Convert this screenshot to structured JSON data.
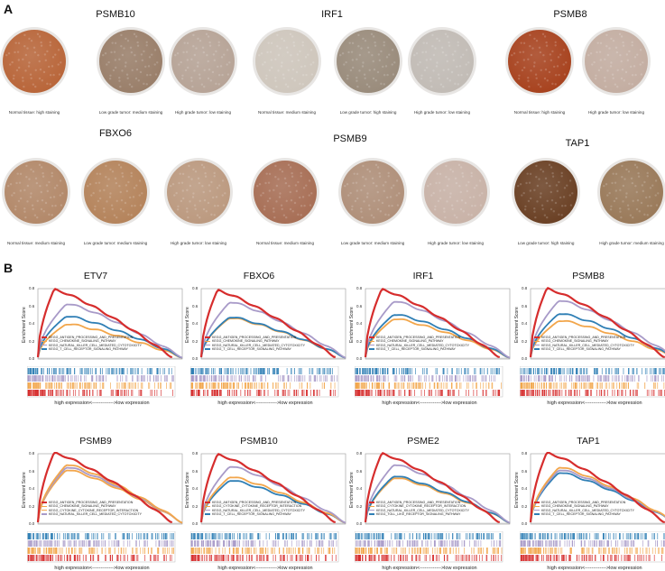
{
  "panel_a": {
    "letter": "A",
    "groups": [
      {
        "gene": "PSMB10",
        "captions": [
          "Normal tissue: high staining",
          "Low grade tumor: medium staining",
          "High grade tumor: low staining"
        ],
        "tones": [
          "#b9663a",
          "#9a7f6a",
          "#b7a497"
        ]
      },
      {
        "gene": "IRF1",
        "captions": [
          "Normal tissue: medium staining",
          "Low grade tumor: high staining",
          "High grade tumor: low staining"
        ],
        "tones": [
          "#cfc7bd",
          "#9a8c7c",
          "#c2bcb6"
        ]
      },
      {
        "gene": "PSMB8",
        "captions": [
          "Normal tissue: high staining",
          "High grade tumor: low staining"
        ],
        "tones": [
          "#a8431f",
          "#c4aea2"
        ]
      },
      {
        "gene": "FBXO6",
        "captions": [
          "Normal tissue: medium staining",
          "Low grade tumor: medium staining",
          "High grade tumor: low staining"
        ],
        "tones": [
          "#b3896a",
          "#b5845c",
          "#bc9a80"
        ]
      },
      {
        "gene": "PSMB9",
        "captions": [
          "Normal tissue: medium staining",
          "Low grade tumor: medium staining",
          "High grade tumor: low staining"
        ],
        "tones": [
          "#a86f56",
          "#b0907a",
          "#c9b3a8"
        ]
      },
      {
        "gene": "TAP1",
        "captions": [
          "Low grade tumor: high staining",
          "High grade tumor: medium staining"
        ],
        "tones": [
          "#6b4125",
          "#9a7a5a"
        ]
      }
    ]
  },
  "panel_b": {
    "letter": "B",
    "y_axis_label": "Enrichment Score",
    "x_axis_label": "high expression<------------->low expression",
    "colors": {
      "red": "#d62d2d",
      "lavender": "#a89ac8",
      "orange": "#f2a64b",
      "blue": "#2f7fb5"
    }
  },
  "chart_data": [
    {
      "type": "line",
      "title": "ETV7",
      "ylim": [
        0,
        0.8
      ],
      "yticks": [
        "0.8",
        "0.6",
        "0.4",
        "0.2",
        "0.0"
      ],
      "series": [
        {
          "name": "KEGG_ANTIGEN_PROCESSING_AND_PRESENTATION",
          "peak": 0.77
        },
        {
          "name": "KEGG_CHEMOKINE_SIGNALING_PATHWAY",
          "peak": 0.38
        },
        {
          "name": "KEGG_NATURAL_KILLER_CELL_MEDIATED_CYTOTOXICITY",
          "peak": 0.61
        },
        {
          "name": "KEGG_T_CELL_RECEPTOR_SIGNALING_PATHWAY",
          "peak": 0.47
        }
      ]
    },
    {
      "type": "line",
      "title": "FBXO6",
      "ylim": [
        0,
        0.8
      ],
      "yticks": [
        "0.8",
        "0.6",
        "0.4",
        "0.2",
        "0.0"
      ],
      "series": [
        {
          "name": "KEGG_ANTIGEN_PROCESSING_AND_PRESENTATION",
          "peak": 0.76
        },
        {
          "name": "KEGG_CHEMOKINE_SIGNALING_PATHWAY",
          "peak": 0.45
        },
        {
          "name": "KEGG_NATURAL_KILLER_CELL_MEDIATED_CYTOTOXICITY",
          "peak": 0.63
        },
        {
          "name": "KEGG_T_CELL_RECEPTOR_SIGNALING_PATHWAY",
          "peak": 0.46
        }
      ]
    },
    {
      "type": "line",
      "title": "IRF1",
      "ylim": [
        0,
        0.8
      ],
      "yticks": [
        "0.8",
        "0.6",
        "0.4",
        "0.2",
        "0.0"
      ],
      "series": [
        {
          "name": "KEGG_ANTIGEN_PROCESSING_AND_PRESENTATION",
          "peak": 0.77
        },
        {
          "name": "KEGG_CHEMOKINE_SIGNALING_PATHWAY",
          "peak": 0.44
        },
        {
          "name": "KEGG_NATURAL_KILLER_CELL_MEDIATED_CYTOTOXICITY",
          "peak": 0.64
        },
        {
          "name": "KEGG_T_CELL_RECEPTOR_SIGNALING_PATHWAY",
          "peak": 0.49
        }
      ]
    },
    {
      "type": "line",
      "title": "PSMB8",
      "ylim": [
        0,
        0.8
      ],
      "yticks": [
        "0.8",
        "0.6",
        "0.4",
        "0.2",
        "0.0"
      ],
      "series": [
        {
          "name": "KEGG_ANTIGEN_PROCESSING_AND_PRESENTATION",
          "peak": 0.78
        },
        {
          "name": "KEGG_CHEMOKINE_SIGNALING_PATHWAY",
          "peak": 0.42
        },
        {
          "name": "KEGG_NATURAL_KILLER_CELL_MEDIATED_CYTOTOXICITY",
          "peak": 0.65
        },
        {
          "name": "KEGG_T_CELL_RECEPTOR_SIGNALING_PATHWAY",
          "peak": 0.5
        }
      ]
    },
    {
      "type": "line",
      "title": "PSMB9",
      "ylim": [
        0,
        0.8
      ],
      "yticks": [
        "0.8",
        "0.6",
        "0.4",
        "0.2",
        "0.0"
      ],
      "series": [
        {
          "name": "KEGG_ANTIGEN_PROCESSING_AND_PRESENTATION",
          "peak": 0.79
        },
        {
          "name": "KEGG_CHEMOKINE_SIGNALING_PATHWAY",
          "peak": 0.6
        },
        {
          "name": "KEGG_CYTOKINE_CYTOKINE_RECEPTOR_INTERACTION",
          "peak": 0.66
        },
        {
          "name": "KEGG_NATURAL_KILLER_CELL_MEDIATED_CYTOTOXICITY",
          "peak": 0.63
        }
      ]
    },
    {
      "type": "line",
      "title": "PSMB10",
      "ylim": [
        0,
        0.8
      ],
      "yticks": [
        "0.8",
        "0.6",
        "0.4",
        "0.2",
        "0.0"
      ],
      "series": [
        {
          "name": "KEGG_ANTIGEN_PROCESSING_AND_PRESENTATION",
          "peak": 0.77
        },
        {
          "name": "KEGG_CYTOKINE_CYTOKINE_RECEPTOR_INTERACTION",
          "peak": 0.52
        },
        {
          "name": "KEGG_NATURAL_KILLER_CELL_MEDIATED_CYTOTOXICITY",
          "peak": 0.64
        },
        {
          "name": "KEGG_T_CELL_RECEPTOR_SIGNALING_PATHWAY",
          "peak": 0.48
        }
      ]
    },
    {
      "type": "line",
      "title": "PSME2",
      "ylim": [
        0,
        0.8
      ],
      "yticks": [
        "0.8",
        "0.6",
        "0.4",
        "0.2",
        "0.0"
      ],
      "series": [
        {
          "name": "KEGG_ANTIGEN_PROCESSING_AND_PRESENTATION",
          "peak": 0.78
        },
        {
          "name": "KEGG_CYTOKINE_CYTOKINE_RECEPTOR_INTERACTION",
          "peak": 0.51
        },
        {
          "name": "KEGG_NATURAL_KILLER_CELL_MEDIATED_CYTOTOXICITY",
          "peak": 0.66
        },
        {
          "name": "KEGG_TOLL_LIKE_RECEPTOR_SIGNALING_PATHWAY",
          "peak": 0.53
        }
      ]
    },
    {
      "type": "line",
      "title": "TAP1",
      "ylim": [
        0,
        0.8
      ],
      "yticks": [
        "0.8",
        "0.6",
        "0.4",
        "0.2",
        "0.0"
      ],
      "series": [
        {
          "name": "KEGG_ANTIGEN_PROCESSING_AND_PRESENTATION",
          "peak": 0.79
        },
        {
          "name": "KEGG_CHEMOKINE_SIGNALING_PATHWAY",
          "peak": 0.63
        },
        {
          "name": "KEGG_NATURAL_KILLER_CELL_MEDIATED_CYTOTOXICITY",
          "peak": 0.6
        },
        {
          "name": "KEGG_T_CELL_RECEPTOR_SIGNALING_PATHWAY",
          "peak": 0.57
        }
      ]
    }
  ]
}
